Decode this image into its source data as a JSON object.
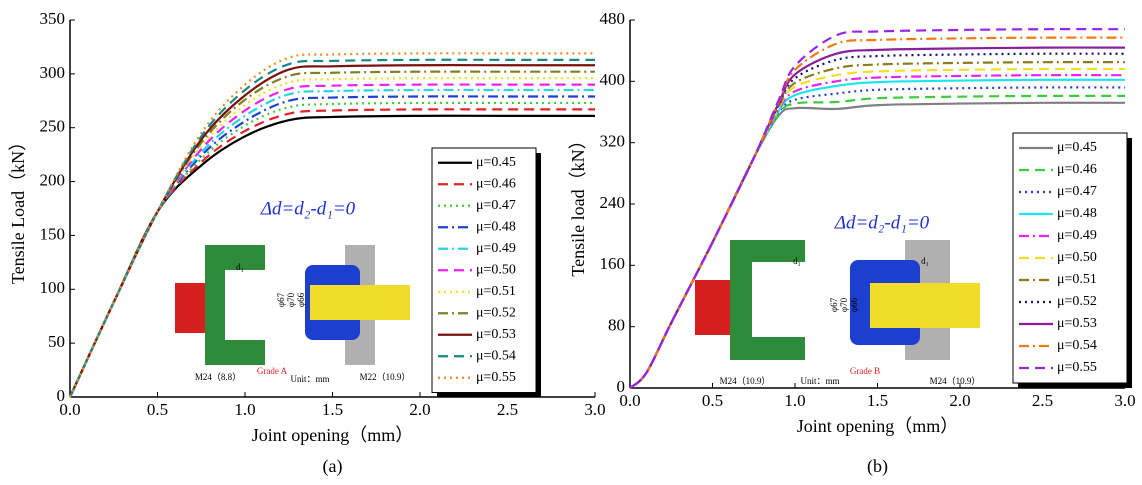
{
  "chart_data": [
    {
      "type": "line",
      "label": "(a)",
      "x_label": "Joint opening（mm）",
      "y_label": "Tensile Load（kN）",
      "annotation": "Δd=d₂-d₁=0",
      "inset_labels": [
        "φ67",
        "φ70",
        "φ66",
        "d₁",
        "Grade A",
        "M24（8.8）",
        "Unit：mm",
        "M22（10.9）"
      ],
      "x": [
        0,
        0.25,
        0.5,
        0.75,
        1,
        1.25,
        1.5,
        2,
        2.5,
        3
      ],
      "xlim": [
        0,
        3
      ],
      "ylim": [
        0,
        350
      ],
      "xticks": [
        {
          "value": 0,
          "label": "0.0"
        },
        0.5,
        {
          "value": 1,
          "label": "1.0"
        },
        1.5,
        {
          "value": 2,
          "label": "2.0"
        },
        2.5,
        {
          "value": 3,
          "label": "3.0"
        }
      ],
      "yticks": [
        0,
        50,
        100,
        150,
        200,
        250,
        300,
        350
      ],
      "series": [
        {
          "name": "μ=0.45",
          "color": "#000000",
          "dash": "solid",
          "values": [
            0,
            88,
            172,
            215,
            242,
            257,
            260,
            261,
            261,
            261
          ]
        },
        {
          "name": "μ=0.46",
          "color": "#e8202a",
          "dash": "dashed",
          "values": [
            0,
            88,
            172,
            218,
            247,
            263,
            266,
            267,
            267,
            267
          ]
        },
        {
          "name": "μ=0.47",
          "color": "#3ccc3c",
          "dash": "dotted",
          "values": [
            0,
            88,
            172,
            221,
            252,
            269,
            272,
            273,
            273,
            273
          ]
        },
        {
          "name": "μ=0.48",
          "color": "#1f3fd8",
          "dash": "dashdot",
          "values": [
            0,
            88,
            172,
            224,
            256,
            275,
            278,
            279,
            279,
            279
          ]
        },
        {
          "name": "μ=0.49",
          "color": "#29d3e0",
          "dash": "dashdot",
          "values": [
            0,
            88,
            172,
            227,
            261,
            281,
            284,
            285,
            285,
            285
          ]
        },
        {
          "name": "μ=0.50",
          "color": "#ee22ee",
          "dash": "dashed",
          "values": [
            0,
            88,
            172,
            230,
            266,
            286,
            289,
            290,
            290,
            290
          ]
        },
        {
          "name": "μ=0.51",
          "color": "#f0e020",
          "dash": "dotted",
          "values": [
            0,
            88,
            172,
            233,
            271,
            292,
            295,
            296,
            296,
            296
          ]
        },
        {
          "name": "μ=0.52",
          "color": "#808020",
          "dash": "dashdot",
          "values": [
            0,
            88,
            172,
            236,
            276,
            298,
            301,
            302,
            302,
            302
          ]
        },
        {
          "name": "μ=0.53",
          "color": "#7a1010",
          "dash": "solid",
          "values": [
            0,
            88,
            172,
            239,
            280,
            304,
            307,
            308,
            308,
            308
          ]
        },
        {
          "name": "μ=0.54",
          "color": "#138a8a",
          "dash": "dashed",
          "values": [
            0,
            88,
            172,
            242,
            285,
            309,
            312,
            313,
            313,
            313
          ]
        },
        {
          "name": "μ=0.55",
          "color": "#f08a20",
          "dash": "dotted",
          "values": [
            0,
            88,
            172,
            245,
            290,
            315,
            318,
            319,
            319,
            319
          ]
        }
      ]
    },
    {
      "type": "line",
      "label": "(b)",
      "x_label": "Joint opening（mm）",
      "y_label": "Tensile load（kN）",
      "annotation": "Δd=d₂-d₁=0",
      "inset_labels": [
        "φ67",
        "φ70",
        "φ66",
        "d₁",
        "d₁",
        "Grade B",
        "M24（10.9）",
        "Unit：mm",
        "M24（10.9）"
      ],
      "x": [
        0,
        0.1,
        0.25,
        0.5,
        0.75,
        0.9,
        1,
        1.25,
        1.5,
        2,
        2.5,
        3
      ],
      "xlim": [
        0,
        3
      ],
      "ylim": [
        0,
        480
      ],
      "xticks": [
        {
          "value": 0,
          "label": "0.0"
        },
        0.5,
        {
          "value": 1,
          "label": "1.0"
        },
        1.5,
        {
          "value": 2,
          "label": "2.0"
        },
        2.5,
        {
          "value": 3,
          "label": "3.0"
        }
      ],
      "yticks": [
        0,
        80,
        160,
        240,
        320,
        400,
        480
      ],
      "series": [
        {
          "name": "μ=0.45",
          "color": "#808080",
          "dash": "solid",
          "values": [
            0,
            20,
            85,
            190,
            300,
            355,
            365,
            364,
            369,
            371,
            372,
            372
          ]
        },
        {
          "name": "μ=0.46",
          "color": "#3ccc3c",
          "dash": "dashed",
          "values": [
            0,
            20,
            85,
            190,
            300,
            357,
            371,
            373,
            378,
            380,
            381,
            381
          ]
        },
        {
          "name": "μ=0.47",
          "color": "#1f3fd8",
          "dash": "dotted",
          "values": [
            0,
            20,
            85,
            190,
            300,
            359,
            376,
            384,
            389,
            391,
            392,
            392
          ]
        },
        {
          "name": "μ=0.48",
          "color": "#19e6f0",
          "dash": "solid",
          "values": [
            0,
            20,
            85,
            190,
            300,
            361,
            382,
            394,
            399,
            401,
            402,
            402
          ]
        },
        {
          "name": "μ=0.49",
          "color": "#ee22ee",
          "dash": "dashdot",
          "values": [
            0,
            20,
            85,
            190,
            300,
            363,
            387,
            400,
            405,
            407,
            408,
            408
          ]
        },
        {
          "name": "μ=0.50",
          "color": "#f0e020",
          "dash": "dashed",
          "values": [
            0,
            20,
            85,
            190,
            300,
            365,
            393,
            408,
            413,
            415,
            416,
            416
          ]
        },
        {
          "name": "μ=0.51",
          "color": "#8a7a20",
          "dash": "dashdot",
          "values": [
            0,
            20,
            85,
            190,
            300,
            367,
            398,
            417,
            422,
            424,
            425,
            425
          ]
        },
        {
          "name": "μ=0.52",
          "color": "#101070",
          "dash": "dotted",
          "values": [
            0,
            20,
            85,
            190,
            300,
            369,
            404,
            428,
            433,
            435,
            436,
            436
          ]
        },
        {
          "name": "μ=0.53",
          "color": "#8a1f9a",
          "dash": "solid",
          "values": [
            0,
            20,
            85,
            190,
            300,
            371,
            409,
            436,
            441,
            443,
            444,
            444
          ]
        },
        {
          "name": "μ=0.54",
          "color": "#f07a10",
          "dash": "dashdot",
          "values": [
            0,
            20,
            85,
            190,
            300,
            373,
            415,
            449,
            454,
            456,
            457,
            457
          ]
        },
        {
          "name": "μ=0.55",
          "color": "#9a22ee",
          "dash": "dashed",
          "values": [
            0,
            20,
            85,
            190,
            300,
            375,
            420,
            460,
            465,
            467,
            468,
            468
          ]
        }
      ]
    }
  ]
}
